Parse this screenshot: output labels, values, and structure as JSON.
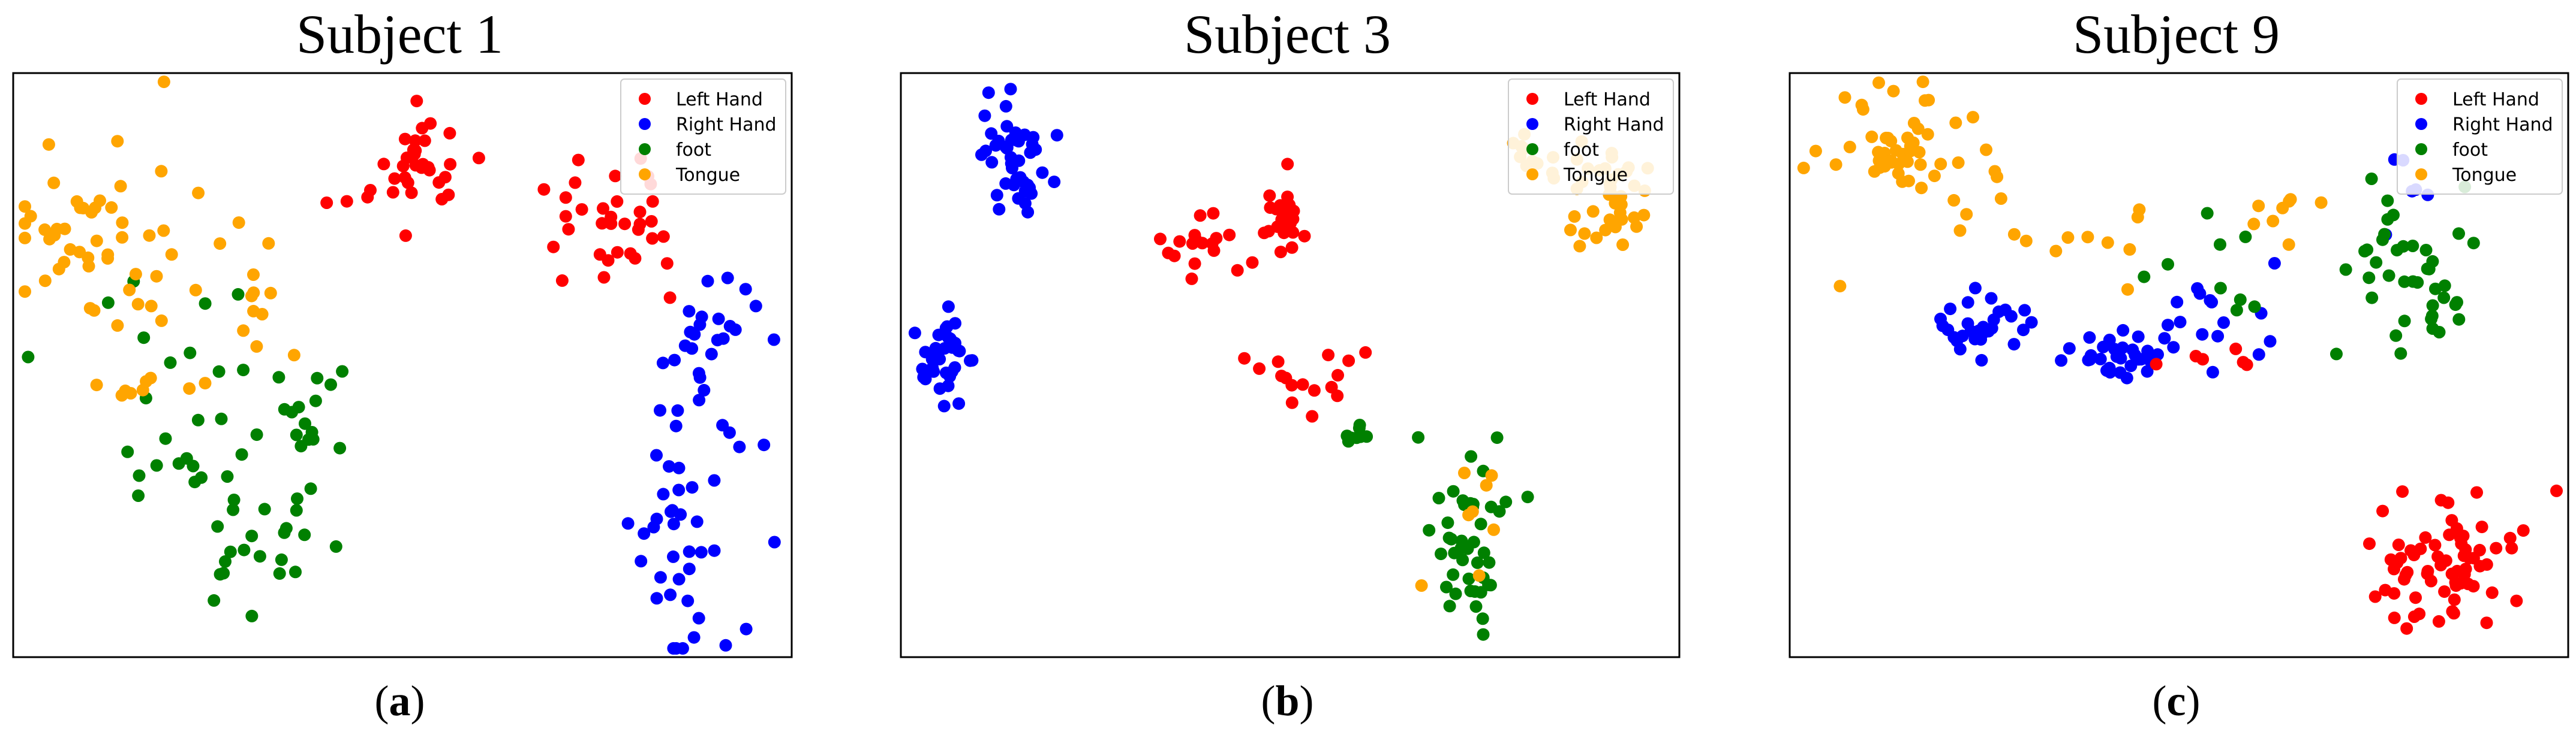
{
  "legend_labels": [
    "Left Hand",
    "Right Hand",
    "foot",
    "Tongue"
  ],
  "colors": {
    "Left Hand": "#ff0000",
    "Right Hand": "#0000ff",
    "foot": "#008000",
    "Tongue": "#ffa500"
  },
  "panels": [
    {
      "title": "Subject 1",
      "caption_open": "(",
      "caption_letter": "a",
      "caption_close": ")"
    },
    {
      "title": "Subject 3",
      "caption_open": "(",
      "caption_letter": "b",
      "caption_close": ")"
    },
    {
      "title": "Subject 9",
      "caption_open": "(",
      "caption_letter": "c",
      "caption_close": ")"
    }
  ],
  "chart_data": [
    {
      "type": "scatter",
      "title": "Subject 1",
      "xlabel": "",
      "ylabel": "",
      "xlim": [
        0,
        100
      ],
      "ylim": [
        0,
        100
      ],
      "ticks": "none",
      "grid": false,
      "legend": "top-right",
      "clusters": [
        {
          "series": "Left Hand",
          "n": 30,
          "cx": 52,
          "cy": 85,
          "sx": 3,
          "sy": 4
        },
        {
          "series": "Left Hand",
          "n": 34,
          "cx": 78,
          "cy": 73,
          "sx": 6,
          "sy": 6
        },
        {
          "series": "Left Hand",
          "n": 4,
          "cx": 45,
          "cy": 78,
          "sx": 2,
          "sy": 2
        },
        {
          "series": "Right Hand",
          "n": 24,
          "cx": 90,
          "cy": 55,
          "sx": 3,
          "sy": 7
        },
        {
          "series": "Right Hand",
          "n": 42,
          "cx": 86,
          "cy": 20,
          "sx": 4,
          "sy": 11
        },
        {
          "series": "foot",
          "n": 18,
          "cx": 38,
          "cy": 40,
          "sx": 3,
          "sy": 7
        },
        {
          "series": "foot",
          "n": 14,
          "cx": 22,
          "cy": 36,
          "sx": 4,
          "sy": 5
        },
        {
          "series": "foot",
          "n": 22,
          "cx": 32,
          "cy": 18,
          "sx": 4,
          "sy": 6
        },
        {
          "series": "foot",
          "n": 10,
          "cx": 18,
          "cy": 58,
          "sx": 7,
          "sy": 8
        },
        {
          "series": "Tongue",
          "n": 44,
          "cx": 10,
          "cy": 72,
          "sx": 5,
          "sy": 9
        },
        {
          "series": "Tongue",
          "n": 20,
          "cx": 25,
          "cy": 60,
          "sx": 6,
          "sy": 8
        },
        {
          "series": "Tongue",
          "n": 6,
          "cx": 16,
          "cy": 45,
          "sx": 2,
          "sy": 2
        }
      ]
    },
    {
      "type": "scatter",
      "title": "Subject 3",
      "xlabel": "",
      "ylabel": "",
      "xlim": [
        0,
        100
      ],
      "ylim": [
        0,
        100
      ],
      "ticks": "none",
      "grid": false,
      "legend": "top-right",
      "clusters": [
        {
          "series": "Right Hand",
          "n": 46,
          "cx": 15,
          "cy": 85,
          "sx": 2.2,
          "sy": 5
        },
        {
          "series": "Right Hand",
          "n": 40,
          "cx": 6,
          "cy": 51,
          "sx": 1.8,
          "sy": 4
        },
        {
          "series": "Left Hand",
          "n": 24,
          "cx": 49,
          "cy": 75,
          "sx": 1.5,
          "sy": 3
        },
        {
          "series": "Left Hand",
          "n": 18,
          "cx": 40,
          "cy": 70,
          "sx": 3,
          "sy": 3
        },
        {
          "series": "Left Hand",
          "n": 16,
          "cx": 52,
          "cy": 48,
          "sx": 4,
          "sy": 4
        },
        {
          "series": "foot",
          "n": 44,
          "cx": 73,
          "cy": 18,
          "sx": 3,
          "sy": 7
        },
        {
          "series": "foot",
          "n": 8,
          "cx": 58,
          "cy": 38,
          "sx": 0.8,
          "sy": 1
        },
        {
          "series": "Tongue",
          "n": 36,
          "cx": 92,
          "cy": 79,
          "sx": 2.5,
          "sy": 4
        },
        {
          "series": "Tongue",
          "n": 14,
          "cx": 82,
          "cy": 86,
          "sx": 3,
          "sy": 3
        },
        {
          "series": "Tongue",
          "n": 8,
          "cx": 74,
          "cy": 30,
          "sx": 3,
          "sy": 7
        }
      ]
    },
    {
      "type": "scatter",
      "title": "Subject 9",
      "xlabel": "",
      "ylabel": "",
      "xlim": [
        0,
        100
      ],
      "ylim": [
        0,
        100
      ],
      "ticks": "none",
      "grid": false,
      "legend": "top-right",
      "clusters": [
        {
          "series": "Tongue",
          "n": 50,
          "cx": 14,
          "cy": 86,
          "sx": 5,
          "sy": 5
        },
        {
          "series": "Tongue",
          "n": 14,
          "cx": 37,
          "cy": 72,
          "sx": 8,
          "sy": 3
        },
        {
          "series": "Tongue",
          "n": 8,
          "cx": 65,
          "cy": 77,
          "sx": 5,
          "sy": 2
        },
        {
          "series": "Right Hand",
          "n": 30,
          "cx": 25,
          "cy": 57,
          "sx": 3,
          "sy": 2.5
        },
        {
          "series": "Right Hand",
          "n": 30,
          "cx": 42,
          "cy": 52,
          "sx": 3,
          "sy": 2.5
        },
        {
          "series": "Right Hand",
          "n": 16,
          "cx": 55,
          "cy": 60,
          "sx": 5,
          "sy": 5
        },
        {
          "series": "Right Hand",
          "n": 6,
          "cx": 80,
          "cy": 78,
          "sx": 5,
          "sy": 5
        },
        {
          "series": "foot",
          "n": 40,
          "cx": 80,
          "cy": 66,
          "sx": 4,
          "sy": 7
        },
        {
          "series": "foot",
          "n": 10,
          "cx": 55,
          "cy": 62,
          "sx": 6,
          "sy": 6
        },
        {
          "series": "Left Hand",
          "n": 70,
          "cx": 84,
          "cy": 16,
          "sx": 5,
          "sy": 5
        },
        {
          "series": "Left Hand",
          "n": 6,
          "cx": 52,
          "cy": 51,
          "sx": 5,
          "sy": 3
        }
      ]
    }
  ]
}
